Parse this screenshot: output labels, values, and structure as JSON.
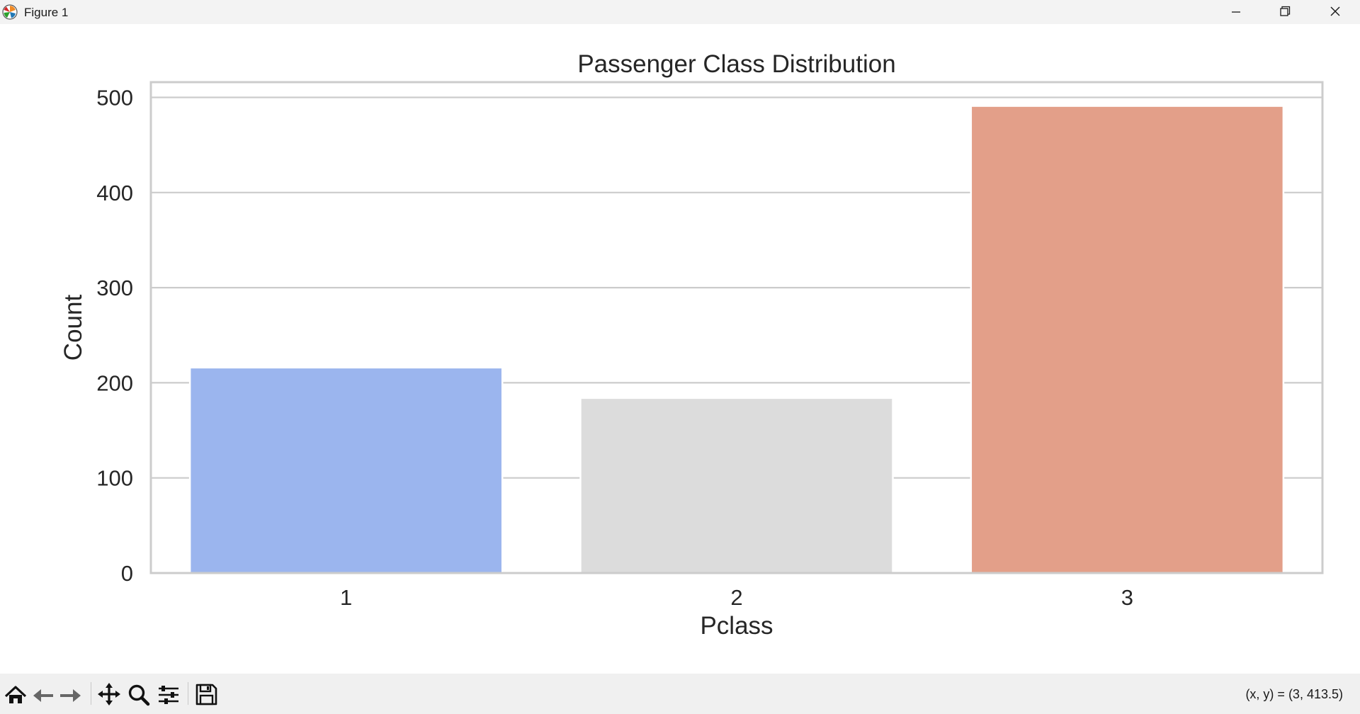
{
  "window": {
    "title": "Figure 1",
    "icons": {
      "app": "matplotlib-icon",
      "minimize": "minimize-icon",
      "restore": "restore-icon",
      "close": "close-icon"
    }
  },
  "toolbar": {
    "buttons": [
      {
        "name": "home",
        "icon": "home-icon"
      },
      {
        "name": "back",
        "icon": "arrow-left-icon"
      },
      {
        "name": "forward",
        "icon": "arrow-right-icon"
      },
      {
        "name": "pan",
        "icon": "move-icon"
      },
      {
        "name": "zoom",
        "icon": "magnifier-icon"
      },
      {
        "name": "configure-subplots",
        "icon": "sliders-icon"
      },
      {
        "name": "save",
        "icon": "floppy-disk-icon"
      }
    ],
    "coords_text": "(x, y) = (3, 413.5)"
  },
  "chart_data": {
    "type": "bar",
    "title": "Passenger Class Distribution",
    "xlabel": "Pclass",
    "ylabel": "Count",
    "categories": [
      "1",
      "2",
      "3"
    ],
    "values": [
      216,
      184,
      491
    ],
    "colors": [
      "#9bb5ee",
      "#dcdcdc",
      "#e39f89"
    ],
    "ylim": [
      0,
      516
    ],
    "yticks": [
      0,
      100,
      200,
      300,
      400,
      500
    ],
    "grid": "y",
    "legend": "none"
  }
}
